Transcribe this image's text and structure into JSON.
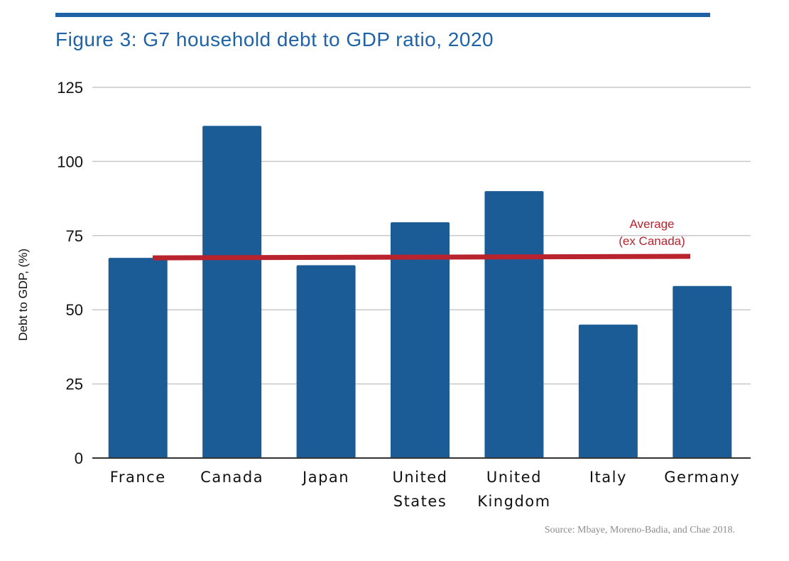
{
  "figure": {
    "title": "Figure 3: G7 household debt to GDP ratio, 2020",
    "source": "Source: Mbaye, Moreno-Badia, and Chae 2018."
  },
  "colors": {
    "accent": "#1f63a6",
    "bar": "#1c5c96",
    "average_line": "#b8232e",
    "average_text": "#b8232e",
    "grid": "#c8c8c8",
    "axis": "#333333",
    "source_text": "#8c8c8c"
  },
  "chart_data": {
    "type": "bar",
    "title": "Figure 3: G7 household debt to GDP ratio, 2020",
    "xlabel": "",
    "ylabel": "Debt to GDP, (%)",
    "ylim": [
      0,
      125
    ],
    "yticks": [
      0,
      25,
      50,
      75,
      100,
      125
    ],
    "grid": true,
    "categories": [
      [
        "France"
      ],
      [
        "Canada"
      ],
      [
        "Japan"
      ],
      [
        "United",
        "States"
      ],
      [
        "United",
        "Kingdom"
      ],
      [
        "Italy"
      ],
      [
        "Germany"
      ]
    ],
    "values": [
      67.5,
      112,
      65,
      79.5,
      90,
      45,
      58
    ],
    "reference_line": {
      "label": [
        "Average",
        "(ex Canada)"
      ],
      "value": 67.5,
      "end_value": 68
    }
  }
}
